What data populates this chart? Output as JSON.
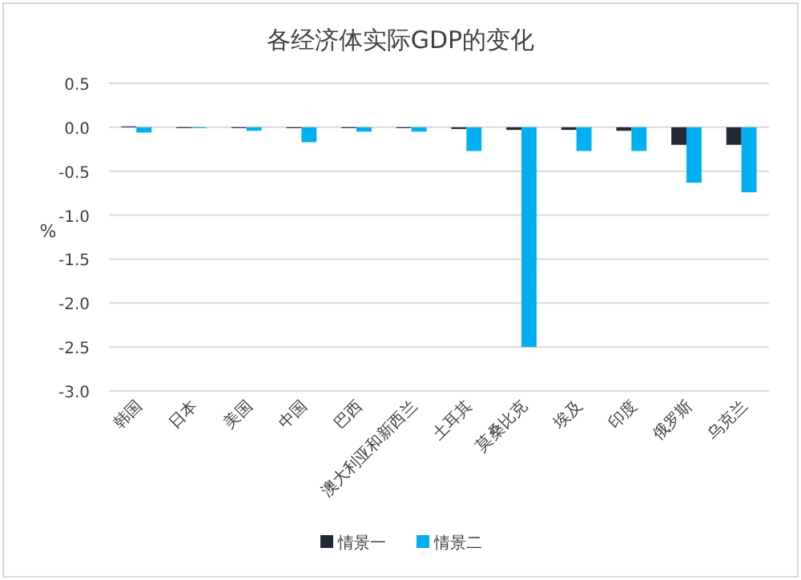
{
  "chart_data": {
    "type": "bar",
    "title": "各经济体实际GDP的变化",
    "ylabel": "%",
    "categories": [
      "韩国",
      "日本",
      "美国",
      "中国",
      "巴西",
      "澳大利亚和新西兰",
      "土耳其",
      "莫桑比克",
      "埃及",
      "印度",
      "俄罗斯",
      "乌克兰"
    ],
    "series": [
      {
        "name": "情景一",
        "color": "#222a35",
        "values": [
          0.01,
          -0.01,
          -0.01,
          -0.01,
          -0.01,
          -0.01,
          -0.02,
          -0.03,
          -0.03,
          -0.04,
          -0.2,
          -0.2
        ]
      },
      {
        "name": "情景二",
        "color": "#00b0f0",
        "values": [
          -0.06,
          -0.01,
          -0.04,
          -0.17,
          -0.05,
          -0.05,
          -0.27,
          -2.5,
          -0.27,
          -0.27,
          -0.63,
          -0.74
        ]
      }
    ],
    "ylim": [
      -3.0,
      0.5
    ],
    "yticks": [
      {
        "value": 0.5,
        "label": "0.5"
      },
      {
        "value": 0,
        "label": "0.0"
      },
      {
        "value": -0.5,
        "label": "-0.5"
      },
      {
        "value": -1,
        "label": "-1.0"
      },
      {
        "value": -1.5,
        "label": "-1.5"
      },
      {
        "value": -2,
        "label": "-2.0"
      },
      {
        "value": -2.5,
        "label": "-2.5"
      },
      {
        "value": -3,
        "label": "-3.0"
      }
    ],
    "grid": "y",
    "legend": "bottom"
  }
}
